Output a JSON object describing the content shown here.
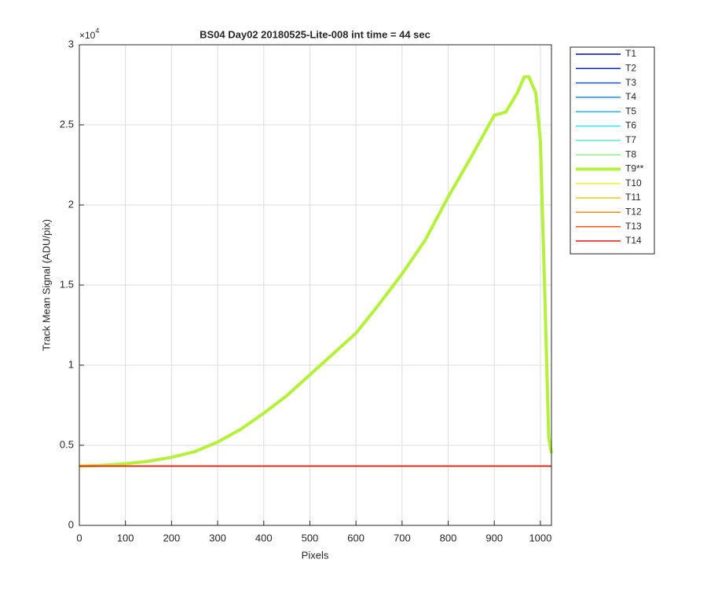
{
  "chart_data": {
    "type": "line",
    "title": "BS04 Day02 20180525-Lite-008 int time = 44 sec",
    "x_label": "Pixels",
    "y_label": "Track Mean Signal (ADU/pix)",
    "y_multiplier": {
      "base": "×10",
      "exponent": "4"
    },
    "xlim": [
      0,
      1024
    ],
    "xticks": [
      0,
      100,
      200,
      300,
      400,
      500,
      600,
      700,
      800,
      900,
      1000
    ],
    "ylim": [
      0,
      3
    ],
    "yticks": [
      0,
      0.5,
      1,
      1.5,
      2,
      2.5,
      3
    ],
    "grid": true,
    "legend": "outside-right",
    "series": [
      {
        "name": "T1",
        "color": "#000c8c",
        "line_width": 1.5,
        "x": [
          0,
          1024
        ],
        "values": [
          0.37,
          0.37
        ]
      },
      {
        "name": "T2",
        "color": "#0a28c8",
        "line_width": 1.5,
        "x": [
          0,
          1024
        ],
        "values": [
          0.37,
          0.37
        ]
      },
      {
        "name": "T3",
        "color": "#1450e6",
        "line_width": 1.5,
        "x": [
          0,
          1024
        ],
        "values": [
          0.37,
          0.37
        ]
      },
      {
        "name": "T4",
        "color": "#1e8cf0",
        "line_width": 1.5,
        "x": [
          0,
          1024
        ],
        "values": [
          0.37,
          0.37
        ]
      },
      {
        "name": "T5",
        "color": "#28b4f0",
        "line_width": 1.5,
        "x": [
          0,
          1024
        ],
        "values": [
          0.37,
          0.37
        ]
      },
      {
        "name": "T6",
        "color": "#32e6f0",
        "line_width": 1.5,
        "x": [
          0,
          1024
        ],
        "values": [
          0.37,
          0.37
        ]
      },
      {
        "name": "T7",
        "color": "#64e6c8",
        "line_width": 1.5,
        "x": [
          0,
          1024
        ],
        "values": [
          0.37,
          0.37
        ]
      },
      {
        "name": "T8",
        "color": "#8cf08c",
        "line_width": 1.5,
        "x": [
          0,
          1024
        ],
        "values": [
          0.37,
          0.37
        ]
      },
      {
        "name": "T9**",
        "color": "#b4f03c",
        "line_width": 4,
        "x": [
          0,
          50,
          100,
          150,
          200,
          250,
          300,
          350,
          400,
          450,
          500,
          550,
          600,
          650,
          700,
          750,
          800,
          850,
          900,
          925,
          950,
          965,
          975,
          990,
          1000,
          1010,
          1018,
          1024
        ],
        "values": [
          0.37,
          0.375,
          0.385,
          0.4,
          0.425,
          0.46,
          0.52,
          0.6,
          0.7,
          0.81,
          0.94,
          1.07,
          1.2,
          1.38,
          1.57,
          1.78,
          2.05,
          2.3,
          2.56,
          2.58,
          2.7,
          2.8,
          2.8,
          2.7,
          2.4,
          1.4,
          0.55,
          0.45
        ]
      },
      {
        "name": "T10",
        "color": "#f0f028",
        "line_width": 1.5,
        "x": [
          0,
          1024
        ],
        "values": [
          0.37,
          0.37
        ]
      },
      {
        "name": "T11",
        "color": "#f0c814",
        "line_width": 1.5,
        "x": [
          0,
          1024
        ],
        "values": [
          0.37,
          0.37
        ]
      },
      {
        "name": "T12",
        "color": "#f08c14",
        "line_width": 1.5,
        "x": [
          0,
          1024
        ],
        "values": [
          0.37,
          0.37
        ]
      },
      {
        "name": "T13",
        "color": "#f05014",
        "line_width": 1.5,
        "x": [
          0,
          1024
        ],
        "values": [
          0.37,
          0.37
        ]
      },
      {
        "name": "T14",
        "color": "#e61414",
        "line_width": 1.5,
        "x": [
          0,
          1024
        ],
        "values": [
          0.37,
          0.37
        ]
      }
    ]
  }
}
